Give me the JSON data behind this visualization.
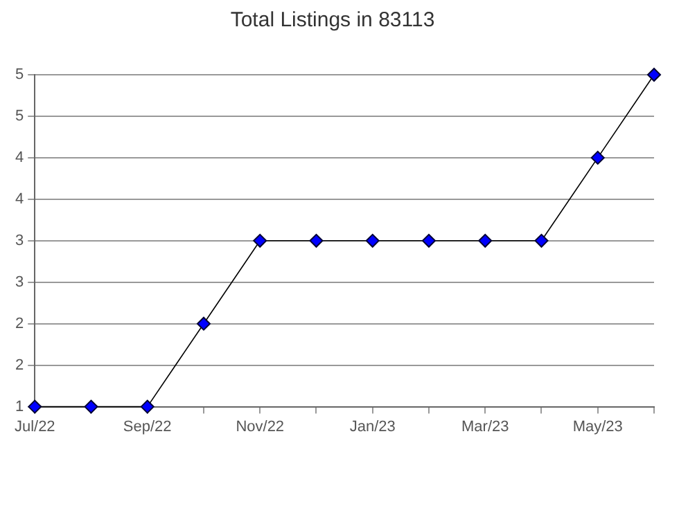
{
  "chart_data": {
    "type": "line",
    "title": "Total Listings in 83113",
    "categories": [
      "Jul/22",
      null,
      "Sep/22",
      null,
      "Nov/22",
      null,
      "Jan/23",
      null,
      "Mar/23",
      null,
      "May/23",
      null
    ],
    "series": [
      {
        "color": "#0000ff",
        "values": [
          1,
          1,
          1,
          2,
          3,
          3,
          3,
          3,
          3,
          3,
          4,
          5
        ]
      }
    ],
    "ylim": [
      1,
      5
    ],
    "yticks": [
      1,
      {
        "value": 1.5,
        "label": "2"
      },
      2,
      {
        "value": 2.5,
        "label": "3"
      },
      3,
      {
        "value": 3.5,
        "label": "4"
      },
      4,
      {
        "value": 4.5,
        "label": "5"
      },
      5
    ],
    "grid": "y",
    "legend": false,
    "marker": "diamond",
    "line_style": "solid"
  }
}
